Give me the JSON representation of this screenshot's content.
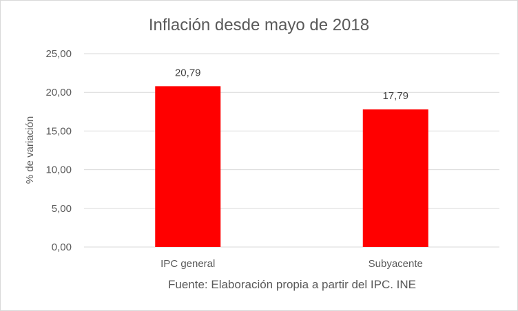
{
  "chart_data": {
    "type": "bar",
    "title": "Inflación desde mayo de 2018",
    "ylabel": "% de variación",
    "xlabel": "",
    "categories": [
      "IPC general",
      "Subyacente"
    ],
    "values": [
      20.79,
      17.79
    ],
    "value_labels": [
      "20,79",
      "17,79"
    ],
    "ylim": [
      0,
      25
    ],
    "yticks": [
      0,
      5,
      10,
      15,
      20,
      25
    ],
    "ytick_labels": [
      "0,00",
      "5,00",
      "10,00",
      "15,00",
      "20,00",
      "25,00"
    ],
    "grid": true,
    "legend": "none",
    "bar_color": "#ff0000",
    "note": "Fuente: Elaboración propia a partir del IPC. INE"
  }
}
